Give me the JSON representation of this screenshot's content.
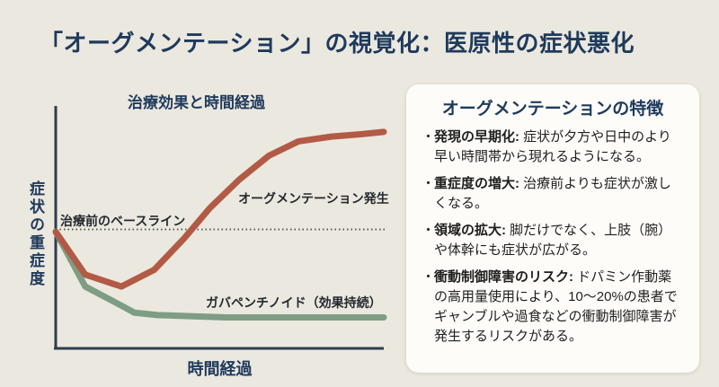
{
  "colors": {
    "background": "#ebe8df",
    "navy": "#1e3a5c",
    "card_background": "#fdfcf9",
    "axis": "#2e3d4f",
    "baseline_dotted": "#4a4a4a",
    "augmentation_red": "#b25a45",
    "gabapentinoid_green": "#7d9d85"
  },
  "title": "「オーグメンテーション」の視覚化：医原性の症状悪化",
  "chart": {
    "title": "治療効果と時間経過",
    "xlabel": "時間経過",
    "ylabel": "症状の重症度",
    "baseline_label": "治療前のベースライン",
    "augmentation_label": "オーグメンテーション発生",
    "gabapentinoid_label": "ガバペンチノイド（効果持続）"
  },
  "chart_data": {
    "type": "line",
    "title": "治療効果と時間経過",
    "xlabel": "時間経過",
    "ylabel": "症状の重症度",
    "xlim": [
      0,
      100
    ],
    "ylim": [
      0,
      100
    ],
    "grid": false,
    "tick_labels": "none",
    "legend_position": "inline-annotations",
    "baseline": {
      "label": "治療前のベースライン",
      "value": 50,
      "style": "dotted"
    },
    "series": [
      {
        "name": "オーグメンテーション発生",
        "color": "#b25a45",
        "x": [
          0,
          9,
          20,
          30,
          39,
          47,
          56,
          65,
          74,
          84,
          93,
          100
        ],
        "y": [
          49,
          31,
          26,
          33,
          46,
          59,
          71,
          81,
          87,
          89,
          90,
          91
        ]
      },
      {
        "name": "ガバペンチノイド（効果持続）",
        "color": "#7d9d85",
        "x": [
          0,
          9,
          20,
          24,
          31,
          52,
          100
        ],
        "y": [
          49,
          26,
          18,
          15,
          14,
          13,
          13
        ]
      }
    ]
  },
  "panel": {
    "title": "オーグメンテーションの特徴",
    "bullet_marker": "・",
    "bullets": [
      {
        "lead": "発現の早期化:",
        "text": " 症状が夕方や日中のより早い時間帯から現れるようになる。"
      },
      {
        "lead": "重症度の増大:",
        "text": " 治療前よりも症状が激しくなる。"
      },
      {
        "lead": "領域の拡大:",
        "text": " 脚だけでなく、上肢（腕）や体幹にも症状が広がる。"
      },
      {
        "lead": "衝動制御障害のリスク:",
        "text": " ドパミン作動薬の高用量使用により、10〜20%の患者でギャンブルや過食などの衝動制御障害が発生するリスクがある。"
      }
    ]
  }
}
